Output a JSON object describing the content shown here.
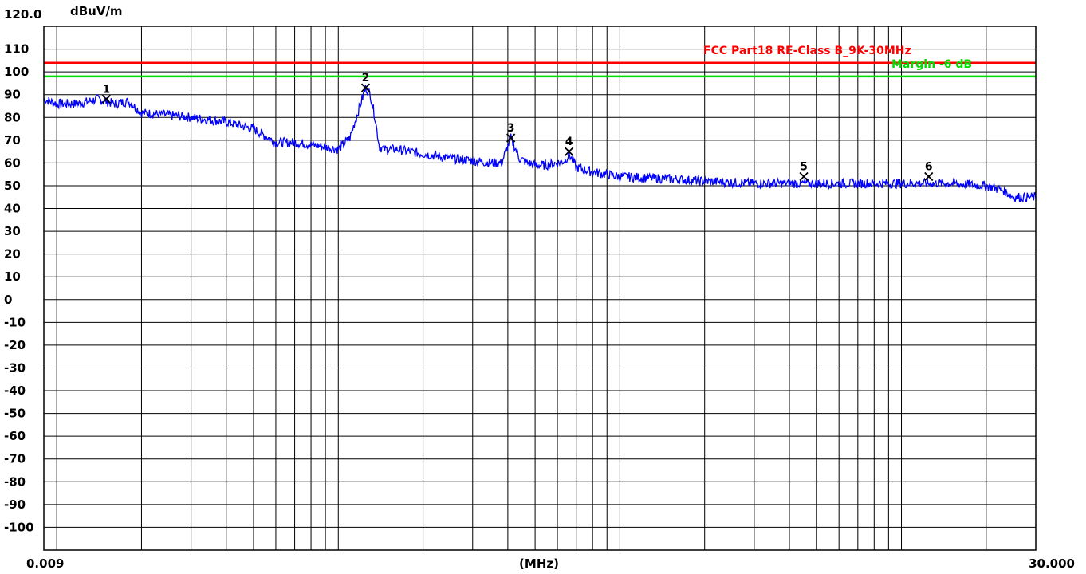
{
  "chart_data": {
    "type": "line",
    "y_axis": {
      "top_label": "120.0",
      "unit": "dBuV/m",
      "ylim": [
        -110,
        120
      ],
      "ticks": [
        110,
        100,
        90,
        80,
        70,
        60,
        50,
        40,
        30,
        20,
        10,
        0,
        -10,
        -20,
        -30,
        -40,
        -50,
        -60,
        -70,
        -80,
        -90,
        -100
      ],
      "tick_labels": [
        "110",
        "100",
        "90",
        "80",
        "70",
        "60",
        "50",
        "40",
        "30",
        "20",
        "10",
        "0",
        "-10",
        "-20",
        "-30",
        "-40",
        "-50",
        "-60",
        "-70",
        "-80",
        "-90",
        "-100"
      ]
    },
    "x_axis": {
      "scale": "log",
      "xlim": [
        0.009,
        30.0
      ],
      "label": "(MHz)",
      "start_label": "0.009",
      "end_label": "30.000"
    },
    "grid": true,
    "limit_lines": [
      {
        "name": "FCC Part18 RE-Class B_9K-30MHz",
        "value": 104,
        "color": "#ff0000"
      },
      {
        "name": "Margin -6 dB",
        "value": 98,
        "color": "#00dd00"
      }
    ],
    "series": [
      {
        "color": "#0000ff",
        "x": [
          0.009,
          0.01,
          0.012,
          0.014,
          0.016,
          0.018,
          0.02,
          0.025,
          0.03,
          0.04,
          0.05,
          0.06,
          0.07,
          0.08,
          0.09,
          0.1,
          0.11,
          0.12,
          0.125,
          0.13,
          0.135,
          0.14,
          0.145,
          0.15,
          0.16,
          0.2,
          0.25,
          0.3,
          0.35,
          0.38,
          0.41,
          0.44,
          0.47,
          0.5,
          0.55,
          0.6,
          0.64,
          0.66,
          0.7,
          0.8,
          1.0,
          1.5,
          2.0,
          3.0,
          4.0,
          5.0,
          6.0,
          7.0,
          8.0,
          8.5,
          10.0,
          15.0,
          20.0,
          23.0,
          25.0,
          30.0
        ],
        "y": [
          88,
          86,
          86,
          88,
          86,
          87,
          82,
          81,
          80,
          78,
          75,
          69,
          69,
          68,
          67,
          66,
          71,
          86,
          93,
          90,
          80,
          67,
          66,
          66,
          66,
          64,
          62,
          61,
          60,
          60,
          71,
          62,
          60,
          59,
          59,
          60,
          61,
          64,
          58,
          56,
          54,
          53,
          52,
          51,
          51,
          51,
          51,
          51,
          51,
          51,
          51,
          51,
          50,
          48,
          45,
          45
        ]
      }
    ],
    "markers": [
      {
        "label": "1",
        "x": 0.015,
        "y": 88
      },
      {
        "label": "2",
        "x": 0.125,
        "y": 93
      },
      {
        "label": "3",
        "x": 0.41,
        "y": 71
      },
      {
        "label": "4",
        "x": 0.66,
        "y": 65
      },
      {
        "label": "5",
        "x": 4.5,
        "y": 54
      },
      {
        "label": "6",
        "x": 12.5,
        "y": 54
      }
    ]
  }
}
